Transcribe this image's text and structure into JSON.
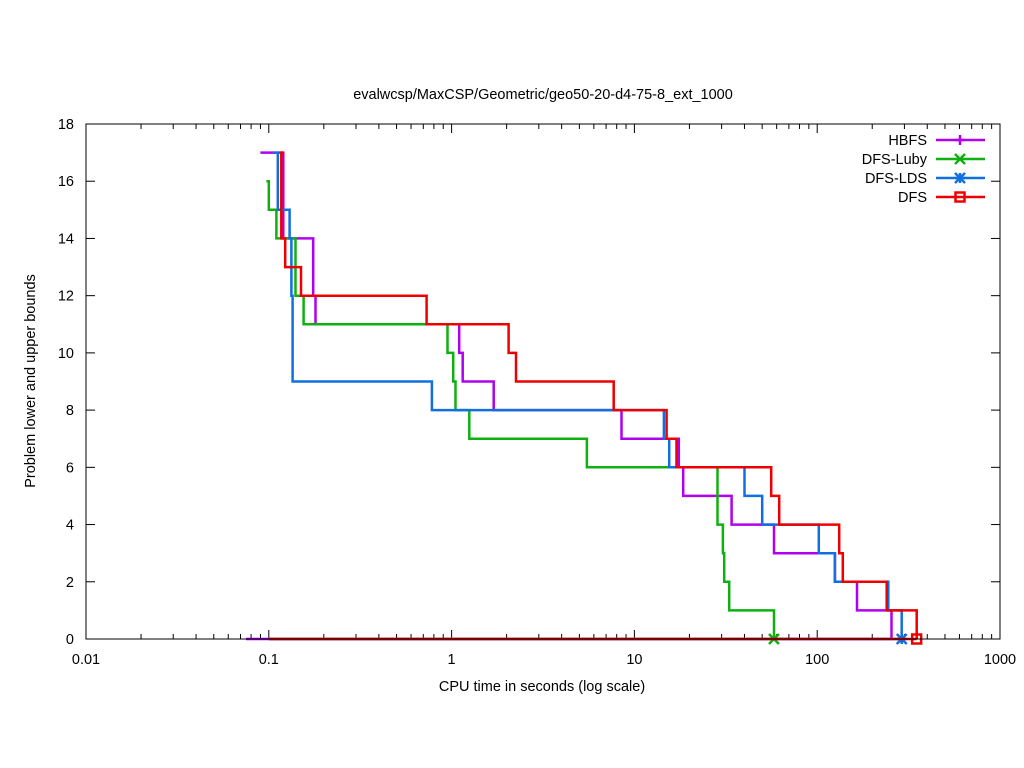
{
  "chart_data": {
    "type": "line",
    "title": "evalwcsp/MaxCSP/Geometric/geo50-20-d4-75-8_ext_1000",
    "xlabel": "CPU time in seconds (log scale)",
    "ylabel": "Problem lower and upper bounds",
    "xscale": "log",
    "xlim": [
      0.01,
      1000
    ],
    "ylim": [
      0,
      18
    ],
    "xticks": [
      0.01,
      0.1,
      1,
      10,
      100,
      1000
    ],
    "xtick_labels": [
      "0.01",
      "0.1",
      "1",
      "10",
      "100",
      "1000"
    ],
    "yticks": [
      0,
      2,
      4,
      6,
      8,
      10,
      12,
      14,
      16,
      18
    ],
    "ytick_labels": [
      "0",
      "2",
      "4",
      "6",
      "8",
      "10",
      "12",
      "14",
      "16",
      "18"
    ],
    "legend_position": "top-right",
    "series": [
      {
        "name": "HBFS",
        "color": "#b000f0",
        "marker": "plus",
        "upper": [
          [
            0.09,
            17
          ],
          [
            0.12,
            14
          ],
          [
            0.175,
            12
          ],
          [
            0.18,
            11
          ],
          [
            1.1,
            10
          ],
          [
            1.15,
            9
          ],
          [
            1.7,
            8
          ],
          [
            8.5,
            7
          ],
          [
            17.5,
            6
          ],
          [
            18.5,
            5
          ],
          [
            34,
            4
          ],
          [
            58,
            3
          ],
          [
            125,
            2
          ],
          [
            165,
            1
          ],
          [
            255,
            0
          ]
        ],
        "lower": [
          [
            0.075,
            0
          ],
          [
            255,
            0
          ]
        ]
      },
      {
        "name": "DFS-Luby",
        "color": "#10b010",
        "marker": "x",
        "upper": [
          [
            0.097,
            16
          ],
          [
            0.1,
            15
          ],
          [
            0.11,
            14
          ],
          [
            0.14,
            12
          ],
          [
            0.155,
            11
          ],
          [
            0.95,
            10
          ],
          [
            1.02,
            9
          ],
          [
            1.05,
            8
          ],
          [
            1.25,
            7
          ],
          [
            5.5,
            6
          ],
          [
            28.5,
            5
          ],
          [
            28.5,
            4
          ],
          [
            30.5,
            3
          ],
          [
            31,
            2
          ],
          [
            33,
            1
          ],
          [
            58,
            0
          ]
        ],
        "lower": [
          [
            0.1,
            0
          ],
          [
            58,
            0
          ]
        ]
      },
      {
        "name": "DFS-LDS",
        "color": "#1070e0",
        "marker": "star",
        "upper": [
          [
            0.105,
            17
          ],
          [
            0.112,
            15
          ],
          [
            0.13,
            14
          ],
          [
            0.133,
            12
          ],
          [
            0.135,
            9
          ],
          [
            0.78,
            8
          ],
          [
            14.5,
            7
          ],
          [
            15.5,
            6
          ],
          [
            40,
            5
          ],
          [
            50,
            4
          ],
          [
            102,
            3
          ],
          [
            125,
            2
          ],
          [
            245,
            1
          ],
          [
            290,
            0
          ]
        ],
        "lower": [
          [
            0.1,
            0
          ],
          [
            290,
            0
          ]
        ]
      },
      {
        "name": "DFS",
        "color": "#ef0000",
        "marker": "square",
        "upper": [
          [
            0.12,
            17
          ],
          [
            0.117,
            14
          ],
          [
            0.123,
            13
          ],
          [
            0.15,
            12
          ],
          [
            0.73,
            11
          ],
          [
            2.05,
            10
          ],
          [
            2.25,
            9
          ],
          [
            7.7,
            8
          ],
          [
            15,
            7
          ],
          [
            17,
            6
          ],
          [
            56,
            5
          ],
          [
            62,
            4
          ],
          [
            132,
            3
          ],
          [
            138,
            2
          ],
          [
            240,
            1
          ],
          [
            350,
            0
          ]
        ],
        "lower": [
          [
            0.1,
            0
          ],
          [
            350,
            0
          ]
        ]
      }
    ]
  }
}
